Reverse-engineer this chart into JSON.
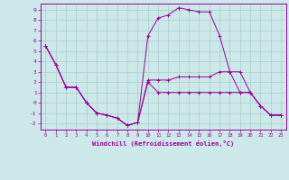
{
  "xlabel": "Windchill (Refroidissement éolien,°C)",
  "bg_color": "#cce8e8",
  "line_color": "#990099",
  "grid_color": "#aacccc",
  "xlim": [
    -0.5,
    23.5
  ],
  "ylim": [
    -2.6,
    9.6
  ],
  "xticks": [
    0,
    1,
    2,
    3,
    4,
    5,
    6,
    7,
    8,
    9,
    10,
    11,
    12,
    13,
    14,
    15,
    16,
    17,
    18,
    19,
    20,
    21,
    22,
    23
  ],
  "yticks": [
    -2,
    -1,
    0,
    1,
    2,
    3,
    4,
    5,
    6,
    7,
    8,
    9
  ],
  "series": [
    [
      5.5,
      3.7,
      1.5,
      1.5,
      0.0,
      -1.0,
      -1.2,
      -1.5,
      -2.2,
      -1.9,
      2.0,
      1.0,
      1.0,
      1.0,
      1.0,
      1.0,
      1.0,
      1.0,
      1.0,
      1.0,
      1.0,
      -0.3,
      -1.2,
      -1.2
    ],
    [
      5.5,
      3.7,
      1.5,
      1.5,
      0.0,
      -1.0,
      -1.2,
      -1.5,
      -2.2,
      -1.9,
      6.5,
      8.2,
      8.5,
      9.2,
      9.0,
      8.8,
      8.8,
      6.5,
      3.0,
      3.0,
      1.0,
      -0.3,
      -1.2,
      -1.2
    ],
    [
      5.5,
      3.7,
      1.5,
      1.5,
      0.0,
      -1.0,
      -1.2,
      -1.5,
      -2.2,
      -1.9,
      2.2,
      2.2,
      2.2,
      2.5,
      2.5,
      2.5,
      2.5,
      3.0,
      3.0,
      1.0,
      1.0,
      -0.3,
      -1.2,
      -1.2
    ]
  ]
}
